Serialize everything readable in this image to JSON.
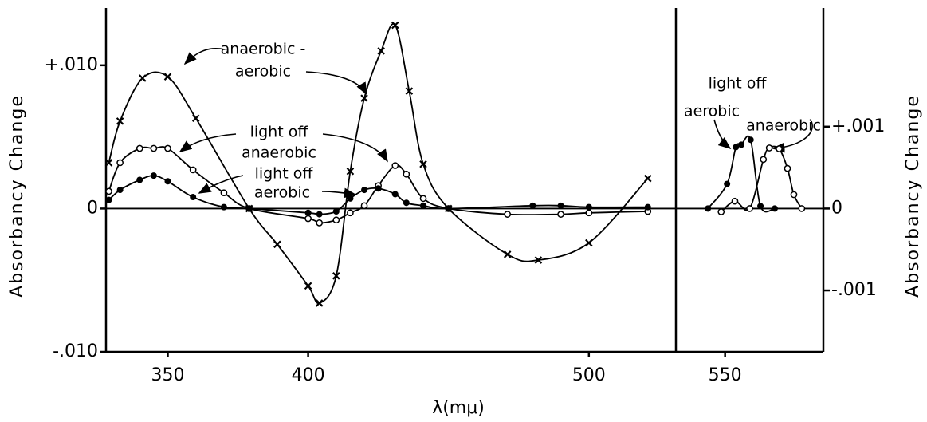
{
  "chart_data": [
    {
      "type": "line",
      "xlabel": "λ(mμ)",
      "ylabel": "Absorbancy Change",
      "xlim": [
        328,
        531
      ],
      "xticks": [
        350,
        400,
        500
      ],
      "ylim": [
        -0.01,
        0.014
      ],
      "yticks": [
        {
          "value": 0.01,
          "label": "+.010"
        },
        0,
        {
          "value": -0.01,
          "label": "-.010"
        }
      ],
      "annotations": [
        [
          "anaerobic -",
          "aerobic"
        ],
        [
          "light off",
          "anaerobic"
        ],
        [
          "light off",
          "aerobic"
        ]
      ],
      "series": [
        {
          "color": "#000000",
          "marker": "cross",
          "x": [
            329,
            333,
            341,
            350,
            360,
            379,
            389,
            400,
            404,
            410,
            415,
            420,
            426,
            431,
            436,
            441,
            450,
            471,
            482,
            500,
            521
          ],
          "values": [
            0.0032,
            0.0061,
            0.0091,
            0.0092,
            0.0063,
            0,
            -0.0025,
            -0.0054,
            -0.0066,
            -0.0047,
            0.0026,
            0.0077,
            0.011,
            0.0128,
            0.0082,
            0.0031,
            0,
            -0.0032,
            -0.0036,
            -0.0024,
            0.0021
          ]
        },
        {
          "color": "#000000",
          "marker": "open-circle",
          "x": [
            329,
            333,
            340,
            345,
            350,
            359,
            370,
            379,
            400,
            404,
            410,
            415,
            420,
            425,
            431,
            435,
            441,
            450,
            471,
            490,
            500,
            521
          ],
          "values": [
            0.0012,
            0.0032,
            0.0042,
            0.0042,
            0.0042,
            0.0027,
            0.0011,
            0,
            -0.0007,
            -0.001,
            -0.0008,
            -0.0003,
            0.0002,
            0.0016,
            0.003,
            0.0024,
            0.0007,
            0,
            -0.0004,
            -0.0004,
            -0.0003,
            -0.0002
          ]
        },
        {
          "color": "#000000",
          "marker": "filled-circle",
          "x": [
            329,
            333,
            340,
            345,
            350,
            359,
            370,
            379,
            400,
            404,
            410,
            415,
            420,
            425,
            431,
            435,
            441,
            450,
            480,
            490,
            500,
            521
          ],
          "values": [
            0.0006,
            0.0013,
            0.002,
            0.0023,
            0.0019,
            0.0008,
            0.0001,
            0,
            -0.0003,
            -0.0004,
            -0.0002,
            0.0007,
            0.0013,
            0.0014,
            0.001,
            0.0004,
            0.0002,
            0,
            0.0002,
            0.0002,
            0.0001,
            0.0001
          ]
        }
      ]
    },
    {
      "type": "line",
      "ylabel": "Absorbancy Change",
      "xlim": [
        540,
        570
      ],
      "xticks": [
        550
      ],
      "ylim": [
        -0.00175,
        0.00245
      ],
      "yticks": [
        {
          "value": 0.001,
          "label": "+.001"
        },
        0,
        {
          "value": -0.001,
          "label": "-.001"
        }
      ],
      "annotations": [
        [
          "light off"
        ],
        [
          "aerobic"
        ],
        [
          "anaerobic"
        ]
      ],
      "series": [
        {
          "color": "#000000",
          "marker": "filled-circle",
          "x": [
            546.5,
            550.4,
            552.2,
            553.3,
            555.2,
            557.2,
            560.1
          ],
          "values": [
            0,
            0.0003,
            0.00075,
            0.00078,
            0.00084,
            3e-05,
            0
          ]
        },
        {
          "color": "#000000",
          "marker": "open-circle",
          "x": [
            549.2,
            552,
            555,
            557.8,
            559,
            561,
            562.7,
            564,
            565.6
          ],
          "values": [
            -4e-05,
            9e-05,
            0,
            0.0006,
            0.00074,
            0.00073,
            0.00049,
            0.00017,
            0
          ]
        }
      ]
    }
  ]
}
